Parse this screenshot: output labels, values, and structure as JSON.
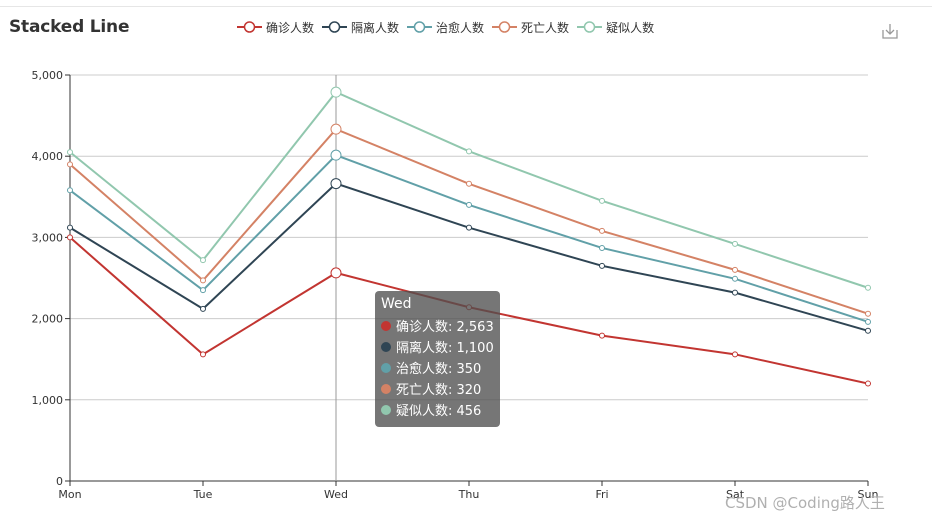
{
  "chart_data": {
    "type": "line",
    "stacked": true,
    "title": "Stacked Line",
    "categories": [
      "Mon",
      "Tue",
      "Wed",
      "Thu",
      "Fri",
      "Sat",
      "Sun"
    ],
    "ylim": [
      0,
      5000
    ],
    "yticks": [
      "0",
      "1,000",
      "2,000",
      "3,000",
      "4,000",
      "5,000"
    ],
    "grid": true,
    "legend_position": "top",
    "series": [
      {
        "name": "确诊人数",
        "color": "#c23531",
        "values": [
          3000,
          1560,
          2563,
          2140,
          1790,
          1560,
          1200
        ]
      },
      {
        "name": "隔离人数",
        "color": "#2f4554",
        "values": [
          120,
          560,
          1100,
          980,
          860,
          760,
          650
        ]
      },
      {
        "name": "治愈人数",
        "color": "#61a0a8",
        "values": [
          460,
          230,
          350,
          280,
          220,
          170,
          110
        ]
      },
      {
        "name": "死亡人数",
        "color": "#d48265",
        "values": [
          320,
          120,
          320,
          260,
          210,
          110,
          100
        ]
      },
      {
        "name": "疑似人数",
        "color": "#91c7ae",
        "values": [
          150,
          250,
          456,
          400,
          370,
          320,
          320
        ]
      }
    ]
  },
  "tooltip": {
    "title": "Wed",
    "rows": [
      {
        "label": "确诊人数: 2,563",
        "color": "#c23531"
      },
      {
        "label": "隔离人数: 1,100",
        "color": "#2f4554"
      },
      {
        "label": "治愈人数: 350",
        "color": "#61a0a8"
      },
      {
        "label": "死亡人数: 320",
        "color": "#d48265"
      },
      {
        "label": "疑似人数: 456",
        "color": "#91c7ae"
      }
    ]
  },
  "toolbox": {
    "icon": "download-icon"
  },
  "watermark": "CSDN @Coding路人王"
}
